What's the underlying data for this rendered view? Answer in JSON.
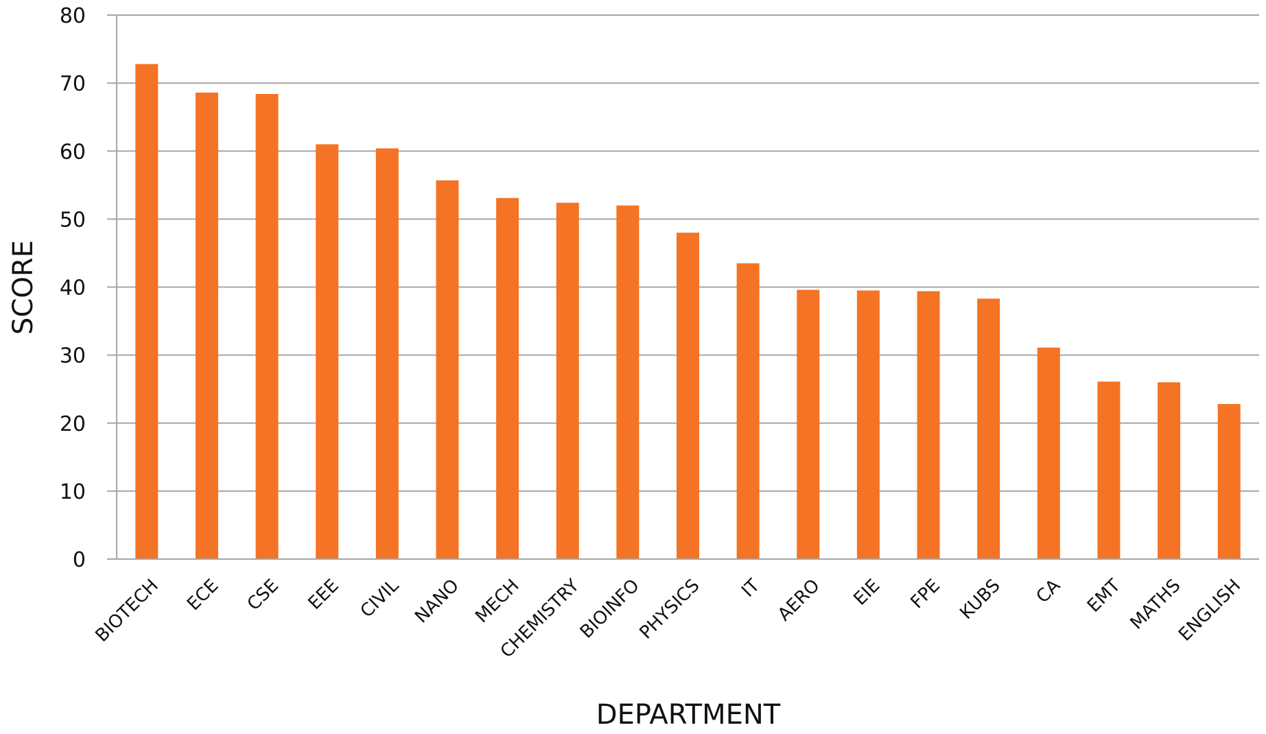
{
  "chart_data": {
    "type": "bar",
    "title": "",
    "xlabel": "DEPARTMENT",
    "ylabel": "SCORE",
    "ylim": [
      0,
      80
    ],
    "yticks": [
      0,
      10,
      20,
      30,
      40,
      50,
      60,
      70,
      80
    ],
    "grid": true,
    "legend": "none",
    "bar_color": "#F47324",
    "grid_color": "#A6A6A6",
    "categories": [
      "BIOTECH",
      "ECE",
      "CSE",
      "EEE",
      "CIVIL",
      "NANO",
      "MECH",
      "CHEMISTRY",
      "BIOINFO",
      "PHYSICS",
      "IT",
      "AERO",
      "EIE",
      "FPE",
      "KUBS",
      "CA",
      "EMT",
      "MATHS",
      "ENGLISH"
    ],
    "values": [
      72.8,
      68.6,
      68.4,
      61.0,
      60.4,
      55.7,
      53.1,
      52.4,
      52.0,
      48.0,
      43.5,
      39.6,
      39.5,
      39.4,
      38.3,
      31.1,
      26.1,
      26.0,
      22.8
    ]
  }
}
